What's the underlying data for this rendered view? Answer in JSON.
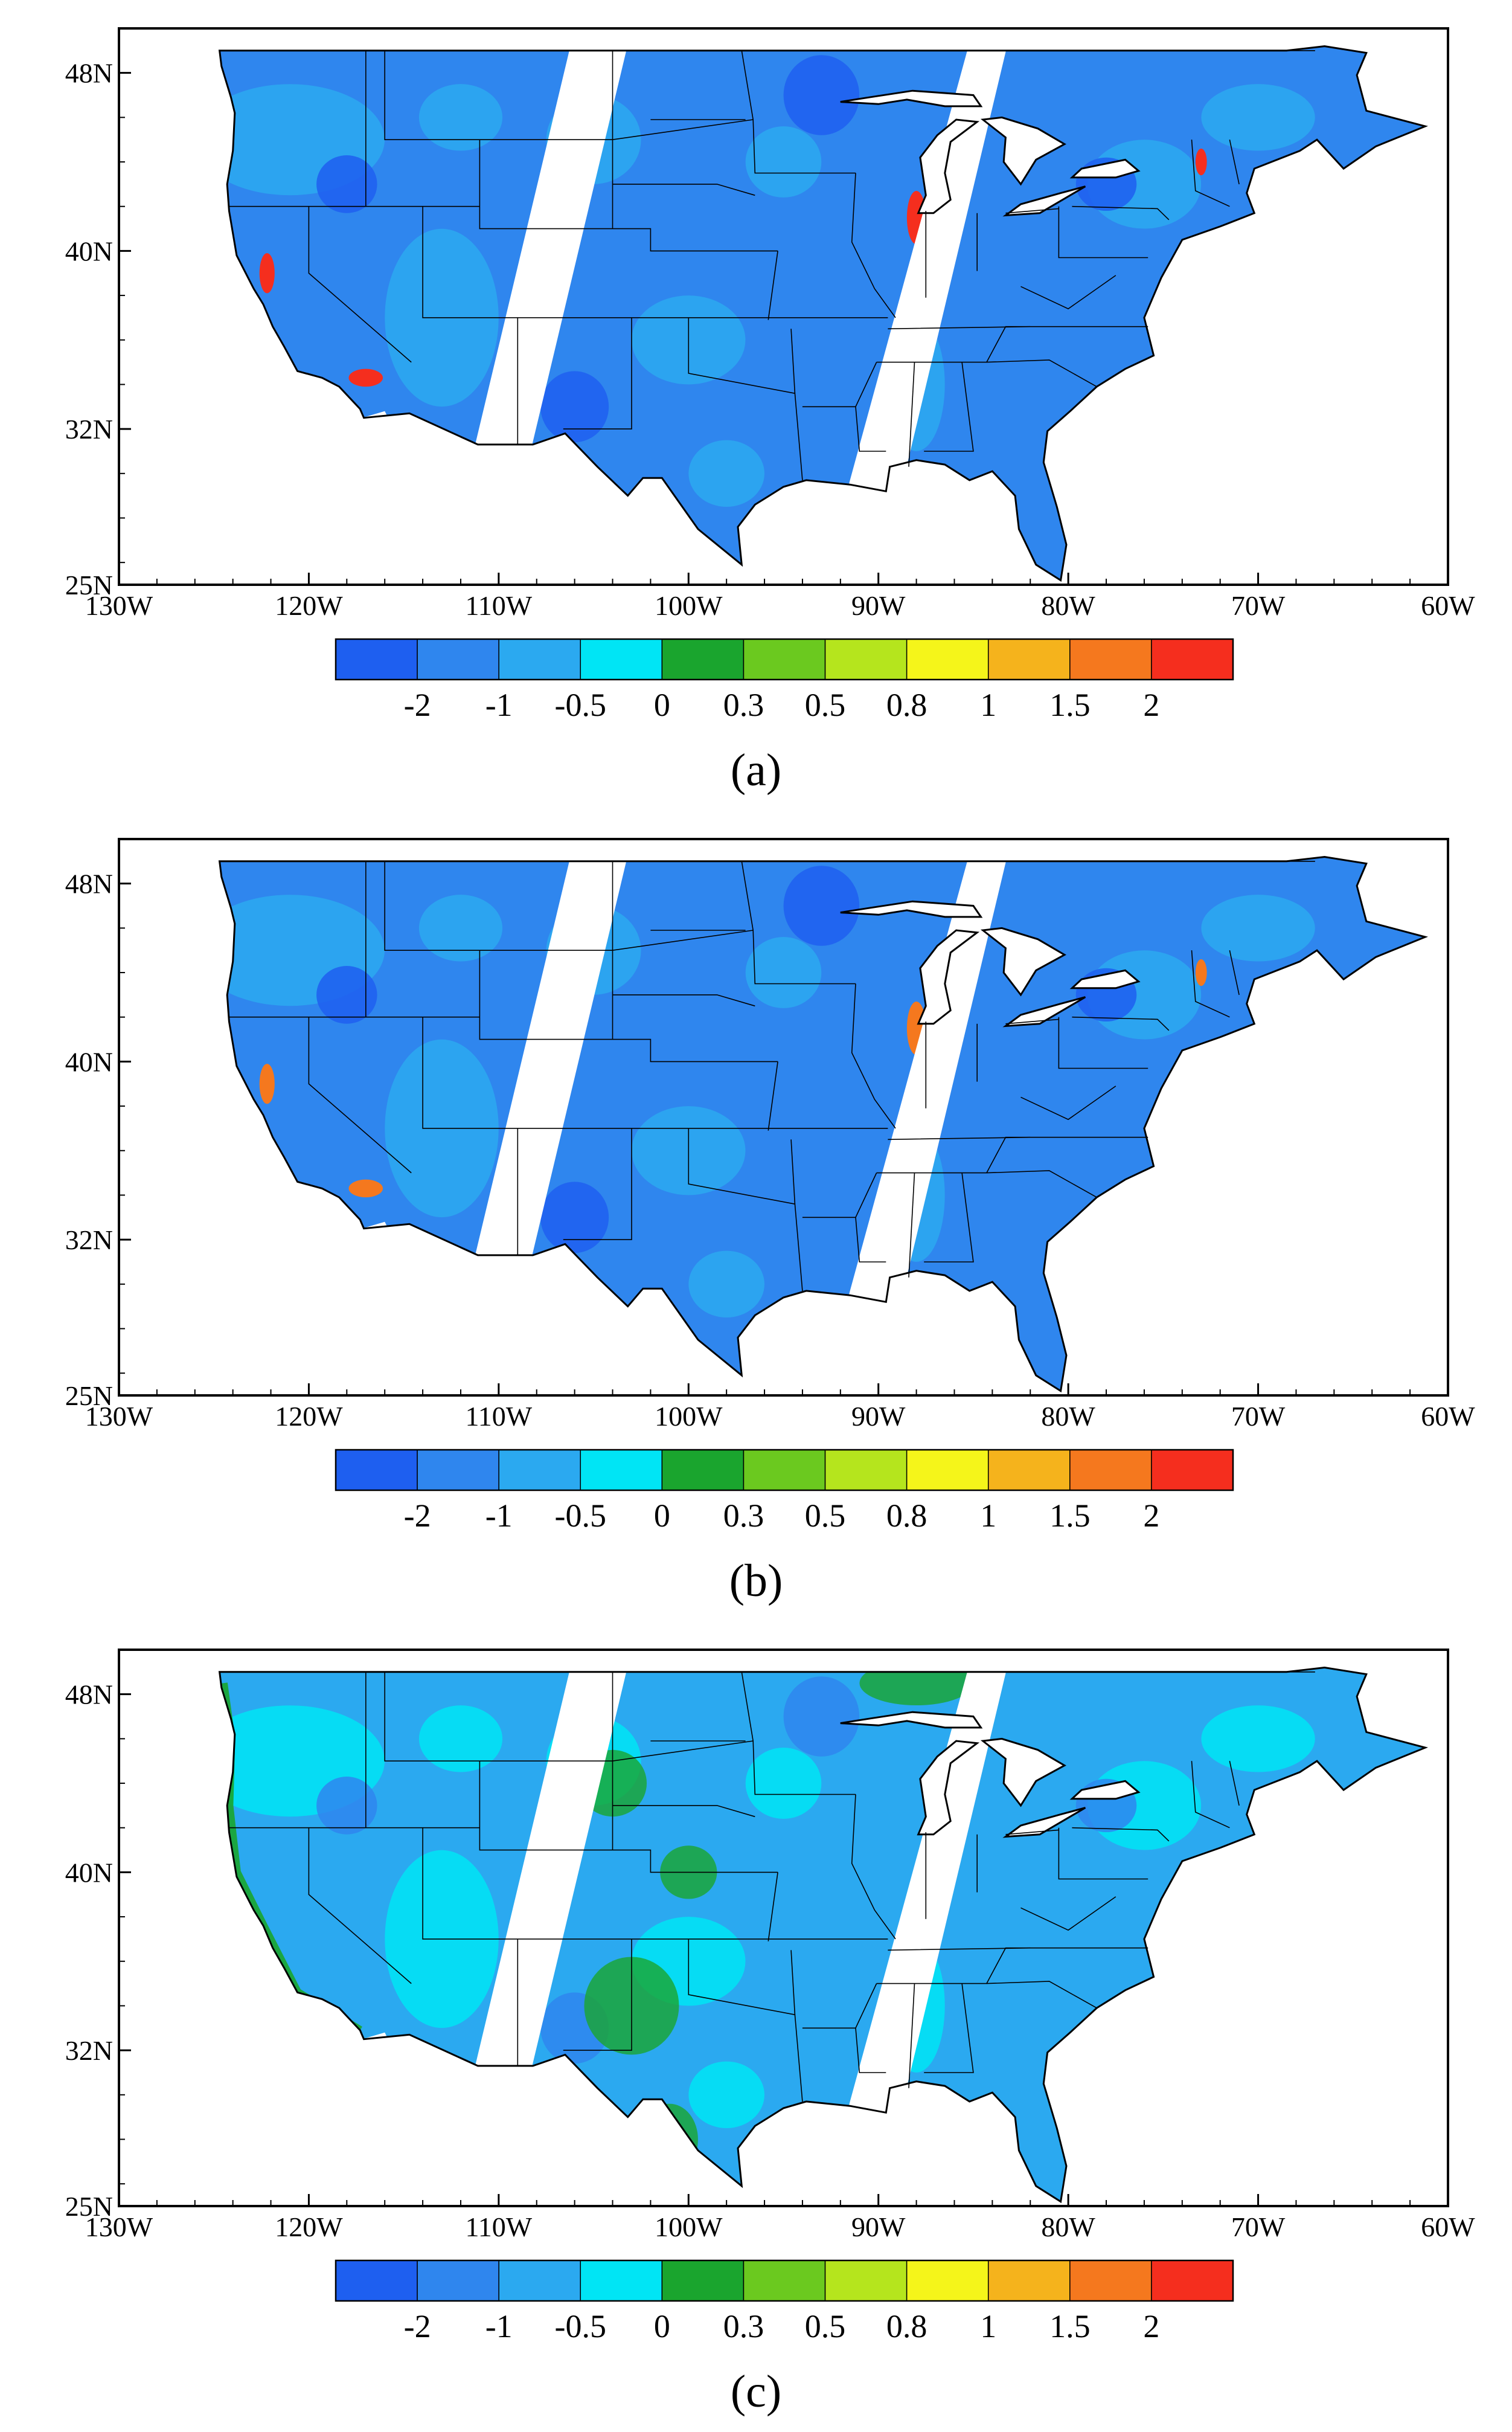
{
  "figure": {
    "panels": [
      {
        "id": "a",
        "label": "(a)"
      },
      {
        "id": "b",
        "label": "(b)"
      },
      {
        "id": "c",
        "label": "(c)"
      }
    ],
    "map": {
      "lon_range": [
        -130,
        -60
      ],
      "lat_range": [
        25,
        50
      ],
      "x_ticks": [
        "130W",
        "120W",
        "110W",
        "100W",
        "90W",
        "80W",
        "70W",
        "60W"
      ],
      "y_ticks": [
        "48N",
        "40N",
        "32N",
        "25N"
      ]
    },
    "colorbar": {
      "tick_labels": [
        "-2",
        "-1",
        "-0.5",
        "0",
        "0.3",
        "0.5",
        "0.8",
        "1",
        "1.5",
        "2"
      ],
      "colors": [
        "#1e5ff0",
        "#2f86ee",
        "#2ba9f0",
        "#00e5f5",
        "#1aa52e",
        "#6bc91f",
        "#b5e51d",
        "#f5f51a",
        "#f5b31c",
        "#f5781e",
        "#f52e1e"
      ]
    }
  }
}
